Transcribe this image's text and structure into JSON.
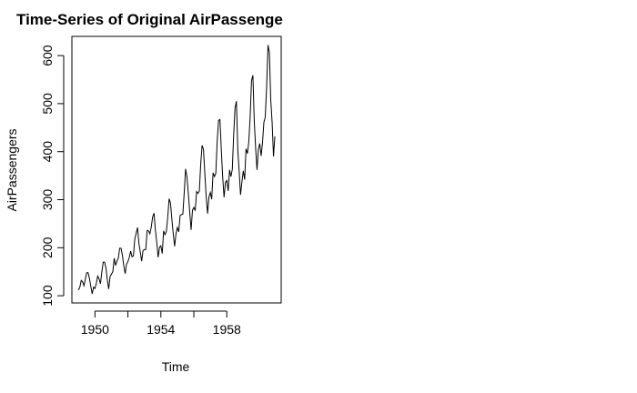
{
  "chart_data": {
    "type": "line",
    "title": "Time-Series of Original AirPassenge",
    "xlabel": "Time",
    "ylabel": "AirPassengers",
    "x_start": 1949,
    "x_step": 0.0833333,
    "xlim": [
      1948.6,
      1961.3
    ],
    "ylim": [
      85,
      640
    ],
    "x_ticks": [
      1950,
      1954,
      1958
    ],
    "y_ticks": [
      100,
      200,
      300,
      400,
      500,
      600
    ],
    "grid": false,
    "legend": "none",
    "line_color": "#000000",
    "series": [
      {
        "values": [
          112,
          118,
          132,
          129,
          121,
          135,
          148,
          148,
          136,
          119,
          104,
          118,
          115,
          126,
          141,
          135,
          125,
          149,
          170,
          170,
          158,
          133,
          114,
          140,
          145,
          150,
          178,
          163,
          172,
          178,
          199,
          199,
          184,
          162,
          146,
          166,
          171,
          180,
          193,
          181,
          183,
          218,
          230,
          242,
          209,
          191,
          172,
          194,
          196,
          196,
          236,
          235,
          229,
          243,
          264,
          272,
          237,
          211,
          180,
          201,
          204,
          188,
          235,
          227,
          234,
          264,
          302,
          293,
          259,
          229,
          203,
          229,
          242,
          233,
          267,
          269,
          270,
          315,
          364,
          347,
          312,
          274,
          237,
          278,
          284,
          277,
          317,
          313,
          318,
          374,
          413,
          405,
          355,
          306,
          271,
          306,
          315,
          301,
          356,
          348,
          355,
          422,
          465,
          467,
          404,
          347,
          305,
          336,
          340,
          318,
          362,
          348,
          363,
          435,
          491,
          505,
          404,
          359,
          310,
          337,
          360,
          342,
          406,
          396,
          420,
          472,
          548,
          559,
          463,
          407,
          362,
          405,
          417,
          391,
          419,
          461,
          472,
          535,
          622,
          606,
          508,
          461,
          390,
          432
        ]
      }
    ]
  }
}
